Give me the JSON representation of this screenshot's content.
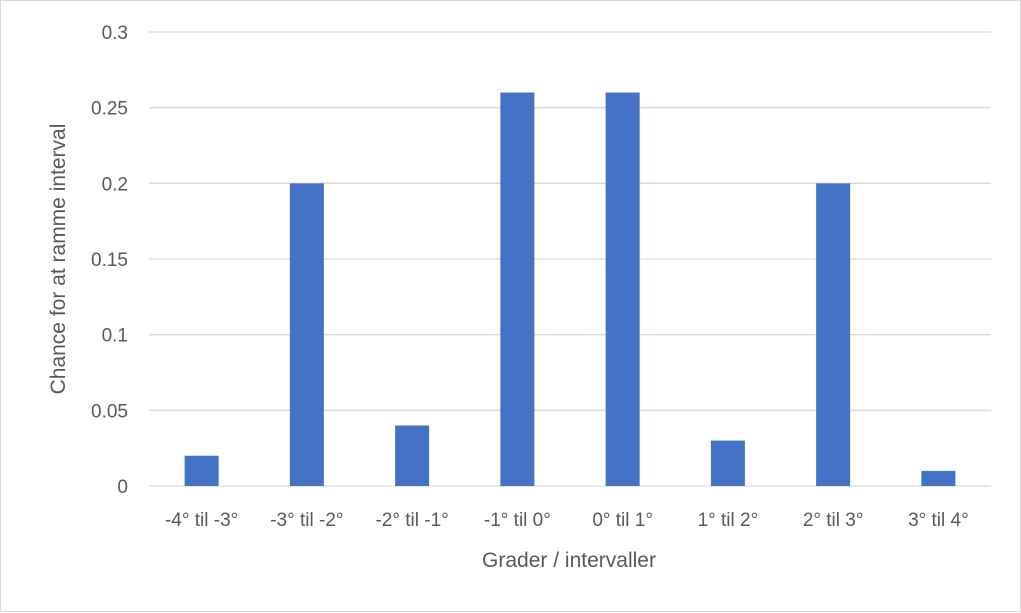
{
  "chart_data": {
    "type": "bar",
    "title": "",
    "xlabel": "Grader / intervaller",
    "ylabel": "Chance for at ramme interval",
    "categories": [
      "-4° til -3°",
      "-3° til -2°",
      "-2° til -1°",
      "-1° til 0°",
      "0° til 1°",
      "1° til 2°",
      "2° til 3°",
      "3° til 4°"
    ],
    "values": [
      0.02,
      0.2,
      0.04,
      0.26,
      0.26,
      0.03,
      0.2,
      0.01
    ],
    "ylim": [
      0,
      0.3
    ],
    "yticks": [
      "0",
      "0.05",
      "0.1",
      "0.15",
      "0.2",
      "0.25",
      "0.3"
    ],
    "grid": true,
    "legend": "none",
    "colors": {
      "bar": "#4472C4",
      "grid": "#d9d9d9",
      "text": "#595959",
      "border": "#d9d9d9"
    }
  }
}
